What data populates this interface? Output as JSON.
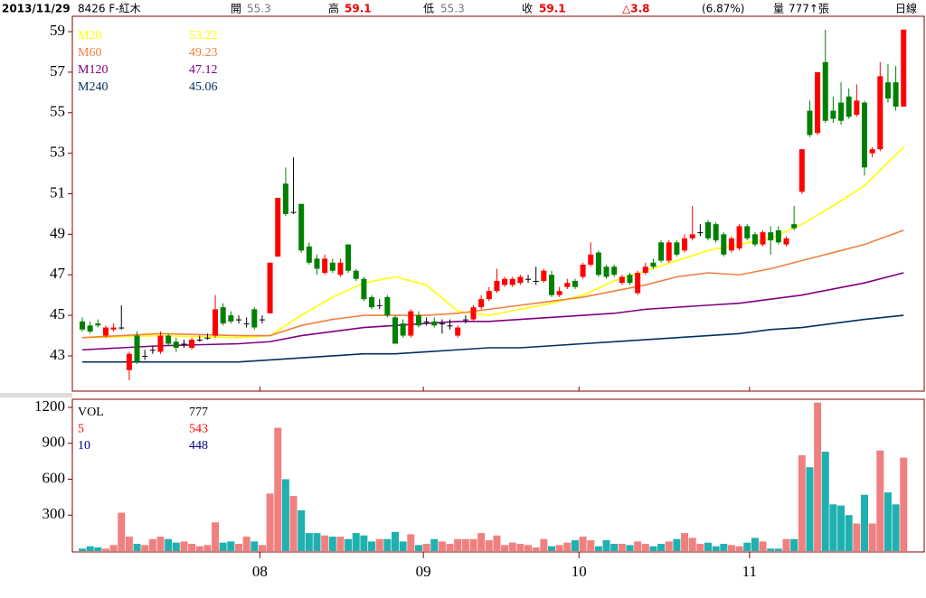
{
  "header": {
    "date": "2013/11/29",
    "symbol": "8426 F-紅木",
    "open_label": "開",
    "open": "55.3",
    "high_label": "高",
    "high": "59.1",
    "low_label": "低",
    "low": "55.3",
    "close_label": "收",
    "close": "59.1",
    "change": "△3.8",
    "change_pct": "(6.87%)",
    "volume_label": "量",
    "volume": "777↑張",
    "period": "日線"
  },
  "chart_data": [
    {
      "type": "candlestick",
      "up_color": "#ff0000",
      "down_color": "#008000",
      "flat_color": "#000000",
      "ylim": [
        41.26,
        59.76
      ],
      "yticks": [
        43,
        45,
        47,
        49,
        51,
        53,
        55,
        57,
        59
      ],
      "xticks": [
        {
          "value": 22.7,
          "label": "08"
        },
        {
          "value": 43.6,
          "label": "09"
        },
        {
          "value": 63.5,
          "label": "10"
        },
        {
          "value": 85.3,
          "label": "11"
        }
      ],
      "ohlc": [
        [
          44.7,
          44.9,
          44.2,
          44.3
        ],
        [
          44.5,
          44.7,
          44.1,
          44.2
        ],
        [
          44.6,
          44.8,
          44.4,
          44.5
        ],
        [
          44.0,
          44.5,
          43.9,
          44.4
        ],
        [
          44.3,
          44.6,
          44.2,
          44.4
        ],
        [
          44.4,
          45.5,
          44.3,
          44.4
        ],
        [
          42.3,
          43.2,
          41.8,
          43.1
        ],
        [
          44.0,
          44.2,
          42.6,
          42.7
        ],
        [
          43.0,
          43.3,
          42.8,
          43.0
        ],
        [
          43.3,
          43.5,
          43.1,
          43.3
        ],
        [
          43.2,
          44.2,
          43.1,
          44.0
        ],
        [
          44.0,
          44.1,
          43.5,
          43.6
        ],
        [
          43.7,
          43.9,
          43.2,
          43.4
        ],
        [
          43.6,
          43.8,
          43.4,
          43.6
        ],
        [
          43.4,
          43.9,
          43.3,
          43.8
        ],
        [
          43.8,
          44.0,
          43.7,
          43.8
        ],
        [
          43.9,
          44.1,
          43.8,
          43.9
        ],
        [
          44.0,
          46.0,
          43.9,
          45.3
        ],
        [
          45.4,
          45.6,
          44.5,
          44.6
        ],
        [
          45.0,
          45.2,
          44.6,
          44.7
        ],
        [
          44.8,
          45.0,
          44.6,
          44.8
        ],
        [
          44.6,
          44.9,
          44.4,
          44.6
        ],
        [
          45.3,
          45.4,
          44.3,
          44.4
        ],
        [
          44.8,
          45.0,
          44.6,
          44.8
        ],
        [
          45.1,
          47.6,
          45.1,
          47.6
        ],
        [
          47.9,
          50.8,
          47.9,
          50.8
        ],
        [
          51.5,
          52.3,
          49.9,
          50.0
        ],
        [
          50.1,
          52.8,
          50.0,
          50.1
        ],
        [
          50.5,
          50.5,
          48.1,
          48.2
        ],
        [
          48.4,
          48.6,
          47.5,
          47.6
        ],
        [
          47.8,
          48.0,
          47.0,
          47.3
        ],
        [
          47.1,
          48.0,
          47.0,
          47.8
        ],
        [
          47.6,
          47.8,
          47.1,
          47.2
        ],
        [
          47.0,
          47.8,
          46.9,
          47.6
        ],
        [
          48.5,
          48.5,
          47.1,
          47.2
        ],
        [
          47.2,
          47.3,
          46.7,
          46.8
        ],
        [
          46.8,
          46.9,
          45.7,
          45.8
        ],
        [
          45.9,
          46.0,
          45.3,
          45.4
        ],
        [
          45.5,
          45.8,
          45.3,
          45.5
        ],
        [
          45.9,
          46.0,
          44.9,
          45.0
        ],
        [
          44.9,
          45.0,
          43.6,
          43.6
        ],
        [
          44.6,
          44.8,
          43.9,
          44.0
        ],
        [
          44.0,
          45.3,
          43.9,
          45.2
        ],
        [
          45.0,
          45.2,
          44.4,
          44.5
        ],
        [
          44.7,
          44.9,
          44.5,
          44.7
        ],
        [
          44.7,
          44.9,
          44.4,
          44.5
        ],
        [
          44.6,
          44.8,
          44.1,
          44.6
        ],
        [
          44.5,
          44.8,
          44.3,
          44.5
        ],
        [
          44.0,
          44.5,
          43.9,
          44.4
        ],
        [
          44.8,
          45.0,
          44.6,
          44.8
        ],
        [
          44.8,
          45.5,
          44.7,
          45.4
        ],
        [
          45.4,
          46.0,
          45.3,
          45.8
        ],
        [
          45.8,
          46.4,
          45.7,
          46.2
        ],
        [
          46.2,
          47.3,
          46.1,
          46.7
        ],
        [
          46.5,
          46.9,
          46.4,
          46.8
        ],
        [
          46.5,
          46.9,
          46.4,
          46.8
        ],
        [
          46.6,
          47.0,
          46.5,
          46.9
        ],
        [
          46.8,
          47.0,
          46.6,
          46.8
        ],
        [
          46.7,
          47.4,
          46.5,
          46.7
        ],
        [
          46.7,
          47.3,
          46.6,
          47.2
        ],
        [
          47.0,
          47.2,
          45.9,
          46.0
        ],
        [
          46.0,
          46.4,
          45.9,
          46.2
        ],
        [
          46.4,
          46.8,
          46.3,
          46.6
        ],
        [
          46.7,
          46.8,
          46.3,
          46.4
        ],
        [
          46.9,
          47.6,
          46.8,
          47.5
        ],
        [
          47.5,
          48.6,
          47.4,
          48.0
        ],
        [
          48.1,
          48.2,
          46.9,
          47.0
        ],
        [
          47.4,
          47.5,
          46.8,
          46.9
        ],
        [
          47.4,
          47.5,
          46.9,
          47.0
        ],
        [
          46.6,
          47.0,
          46.5,
          46.9
        ],
        [
          47.0,
          47.1,
          46.5,
          46.6
        ],
        [
          46.1,
          47.2,
          46.0,
          47.1
        ],
        [
          47.1,
          47.6,
          47.0,
          47.4
        ],
        [
          47.6,
          47.8,
          47.3,
          47.4
        ],
        [
          48.6,
          48.7,
          47.6,
          47.7
        ],
        [
          47.7,
          48.7,
          47.6,
          48.6
        ],
        [
          48.6,
          48.7,
          47.9,
          48.0
        ],
        [
          48.2,
          49.0,
          48.1,
          48.8
        ],
        [
          48.8,
          50.4,
          48.7,
          49.0
        ],
        [
          49.1,
          49.5,
          48.9,
          49.1
        ],
        [
          49.6,
          49.7,
          48.7,
          48.8
        ],
        [
          49.5,
          49.6,
          48.6,
          48.7
        ],
        [
          49.0,
          49.1,
          47.9,
          48.0
        ],
        [
          48.2,
          48.9,
          48.1,
          48.8
        ],
        [
          48.3,
          49.5,
          48.2,
          49.4
        ],
        [
          49.4,
          49.5,
          48.7,
          48.8
        ],
        [
          49.0,
          49.1,
          48.4,
          48.5
        ],
        [
          48.5,
          49.2,
          48.4,
          49.1
        ],
        [
          49.1,
          49.4,
          48.0,
          48.7
        ],
        [
          49.2,
          49.4,
          48.5,
          48.6
        ],
        [
          48.5,
          48.9,
          48.4,
          48.8
        ],
        [
          49.5,
          50.4,
          49.2,
          49.3
        ],
        [
          51.1,
          53.2,
          51.0,
          53.2
        ],
        [
          55.1,
          55.6,
          53.8,
          53.9
        ],
        [
          54.0,
          57.0,
          53.9,
          57.0
        ],
        [
          57.5,
          59.1,
          54.5,
          54.6
        ],
        [
          55.1,
          55.8,
          54.5,
          54.7
        ],
        [
          55.5,
          56.5,
          54.4,
          54.6
        ],
        [
          55.8,
          56.2,
          54.7,
          54.8
        ],
        [
          54.9,
          56.4,
          54.8,
          55.6
        ],
        [
          55.5,
          55.6,
          51.9,
          52.3
        ],
        [
          53.0,
          53.3,
          52.8,
          53.2
        ],
        [
          53.2,
          57.5,
          53.1,
          56.8
        ],
        [
          56.5,
          57.4,
          55.5,
          55.7
        ],
        [
          56.5,
          57.3,
          55.1,
          55.3
        ],
        [
          55.3,
          59.1,
          55.3,
          59.1
        ]
      ],
      "series": [
        {
          "name": "M20",
          "color": "#ffff00",
          "label_value": 53.22,
          "x": [
            0,
            10,
            20,
            24,
            28,
            32,
            36,
            40,
            44,
            48,
            52,
            56,
            60,
            64,
            68,
            72,
            76,
            80,
            84,
            88,
            92,
            96,
            100,
            105
          ],
          "values": [
            43.9,
            44.0,
            43.9,
            44.0,
            45.0,
            45.9,
            46.6,
            46.9,
            46.5,
            45.2,
            45.0,
            45.3,
            45.6,
            46.0,
            46.7,
            47.2,
            47.7,
            48.2,
            48.5,
            48.8,
            49.5,
            50.4,
            51.4,
            53.3
          ]
        },
        {
          "name": "M60",
          "color": "#f08040",
          "label_value": 49.23,
          "x": [
            0,
            10,
            20,
            24,
            28,
            32,
            36,
            40,
            44,
            48,
            52,
            56,
            60,
            64,
            68,
            72,
            76,
            80,
            84,
            88,
            92,
            96,
            100,
            105
          ],
          "values": [
            43.9,
            44.1,
            44.0,
            44.0,
            44.5,
            44.8,
            45.0,
            45.0,
            45.0,
            45.1,
            45.3,
            45.5,
            45.7,
            45.9,
            46.2,
            46.5,
            46.9,
            47.1,
            47.0,
            47.3,
            47.7,
            48.1,
            48.5,
            49.2
          ]
        },
        {
          "name": "M120",
          "color": "#800080",
          "label_value": 47.12,
          "x": [
            0,
            10,
            20,
            24,
            28,
            32,
            36,
            40,
            44,
            48,
            52,
            56,
            60,
            64,
            68,
            72,
            76,
            80,
            84,
            88,
            92,
            96,
            100,
            105
          ],
          "values": [
            43.3,
            43.5,
            43.6,
            43.7,
            44.0,
            44.2,
            44.4,
            44.5,
            44.6,
            44.7,
            44.7,
            44.8,
            44.9,
            45.0,
            45.1,
            45.3,
            45.4,
            45.5,
            45.6,
            45.8,
            46.0,
            46.3,
            46.6,
            47.1
          ]
        },
        {
          "name": "M240",
          "color": "#003060",
          "label_value": 45.06,
          "x": [
            0,
            10,
            20,
            24,
            28,
            32,
            36,
            40,
            44,
            48,
            52,
            56,
            60,
            64,
            68,
            72,
            76,
            80,
            84,
            88,
            92,
            96,
            100,
            105
          ],
          "values": [
            42.7,
            42.7,
            42.7,
            42.8,
            42.9,
            43.0,
            43.1,
            43.1,
            43.2,
            43.3,
            43.4,
            43.4,
            43.5,
            43.6,
            43.7,
            43.8,
            43.9,
            44.0,
            44.1,
            44.3,
            44.4,
            44.6,
            44.8,
            45.0
          ]
        }
      ]
    },
    {
      "type": "bar",
      "up_color": "#f08080",
      "down_color": "#20b0b0",
      "ylim": [
        0,
        1268
      ],
      "yticks": [
        300,
        600,
        900,
        1200
      ],
      "legend": [
        {
          "name": "VOL",
          "value": 777,
          "color": "#000000"
        },
        {
          "name": "5",
          "value": 543,
          "color": "#ff0000"
        },
        {
          "name": "10",
          "value": 448,
          "color": "#000080"
        }
      ],
      "values": [
        20,
        40,
        30,
        20,
        50,
        320,
        120,
        60,
        50,
        100,
        120,
        100,
        70,
        80,
        60,
        40,
        50,
        240,
        70,
        80,
        60,
        120,
        80,
        50,
        480,
        1030,
        600,
        460,
        340,
        150,
        150,
        130,
        120,
        120,
        100,
        150,
        130,
        80,
        100,
        100,
        160,
        80,
        140,
        50,
        60,
        100,
        80,
        60,
        100,
        100,
        100,
        150,
        90,
        130,
        50,
        70,
        60,
        50,
        30,
        100,
        40,
        50,
        70,
        90,
        120,
        90,
        40,
        90,
        60,
        60,
        50,
        80,
        60,
        40,
        60,
        80,
        100,
        150,
        110,
        60,
        70,
        40,
        60,
        50,
        40,
        70,
        110,
        80,
        20,
        20,
        100,
        100,
        800,
        700,
        1240,
        830,
        390,
        380,
        300,
        230,
        470,
        230,
        840,
        490,
        390,
        780
      ]
    }
  ]
}
